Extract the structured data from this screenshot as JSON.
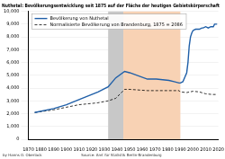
{
  "chart_data": {
    "type": "line",
    "title": "Nuthetal: Bevölkerungsentwicklung seit 1875 auf der Fläche der heutigen Gebietskörperschaft",
    "author": "by Hanns O. Oberlack",
    "source": "Source: Amt für Statistik Berlin-Brandenburg",
    "series": [
      {
        "name": "Bevölkerung von Nuthetal",
        "color": "#1f5fa8",
        "line_style": "solid",
        "x": [
          1875,
          1890,
          1900,
          1910,
          1925,
          1933,
          1939,
          1946,
          1950,
          1964,
          1971,
          1981,
          1985,
          1989,
          1990,
          1992,
          1995,
          1996,
          1997,
          1998,
          1999,
          2000,
          2002,
          2005,
          2007,
          2008,
          2010,
          2012,
          2014,
          2016,
          2017,
          2019
        ],
        "values": [
          2086,
          2400,
          2700,
          3100,
          3700,
          4100,
          4800,
          5300,
          5200,
          4700,
          4700,
          4600,
          4500,
          4400,
          4400,
          4500,
          5200,
          6000,
          7300,
          8000,
          8300,
          8500,
          8600,
          8600,
          8700,
          8700,
          8800,
          8700,
          8800,
          8800,
          9000,
          9000
        ]
      },
      {
        "name": "Normalisierte Bevölkerung von Brandenburg, 1875 = 2086",
        "color": "#000000",
        "line_style": "dashed",
        "x": [
          1875,
          1890,
          1900,
          1910,
          1925,
          1933,
          1939,
          1946,
          1950,
          1964,
          1971,
          1981,
          1985,
          1989,
          1990,
          1995,
          2000,
          2005,
          2010,
          2015,
          2019
        ],
        "values": [
          2086,
          2300,
          2500,
          2700,
          2850,
          3000,
          3200,
          3900,
          3900,
          3800,
          3800,
          3800,
          3800,
          3800,
          3700,
          3650,
          3750,
          3700,
          3550,
          3500,
          3500
        ]
      }
    ],
    "periods": [
      {
        "from": 1933,
        "to": 1945,
        "color": "#c8c8c8"
      },
      {
        "from": 1945,
        "to": 1990,
        "color": "#f8d2b4"
      }
    ],
    "xlim": [
      1870,
      2020
    ],
    "xticks": [
      1870,
      1880,
      1890,
      1900,
      1910,
      1920,
      1930,
      1940,
      1950,
      1960,
      1970,
      1980,
      1990,
      2000,
      2010,
      2020
    ],
    "ylim": [
      0,
      10000
    ],
    "yticks": [
      0,
      {
        "value": 1000,
        "label": "1,000"
      },
      {
        "value": 2000,
        "label": "2,000"
      },
      {
        "value": 3000,
        "label": "3,000"
      },
      {
        "value": 4000,
        "label": "4,000"
      },
      {
        "value": 5000,
        "label": "5,000"
      },
      {
        "value": 6000,
        "label": "6,000"
      },
      {
        "value": 7000,
        "label": "7,000"
      },
      {
        "value": 8000,
        "label": "8,000"
      },
      {
        "value": 9000,
        "label": "9,000"
      },
      {
        "value": 10000,
        "label": "10,000"
      }
    ],
    "grid": true,
    "legend": "upper left"
  }
}
